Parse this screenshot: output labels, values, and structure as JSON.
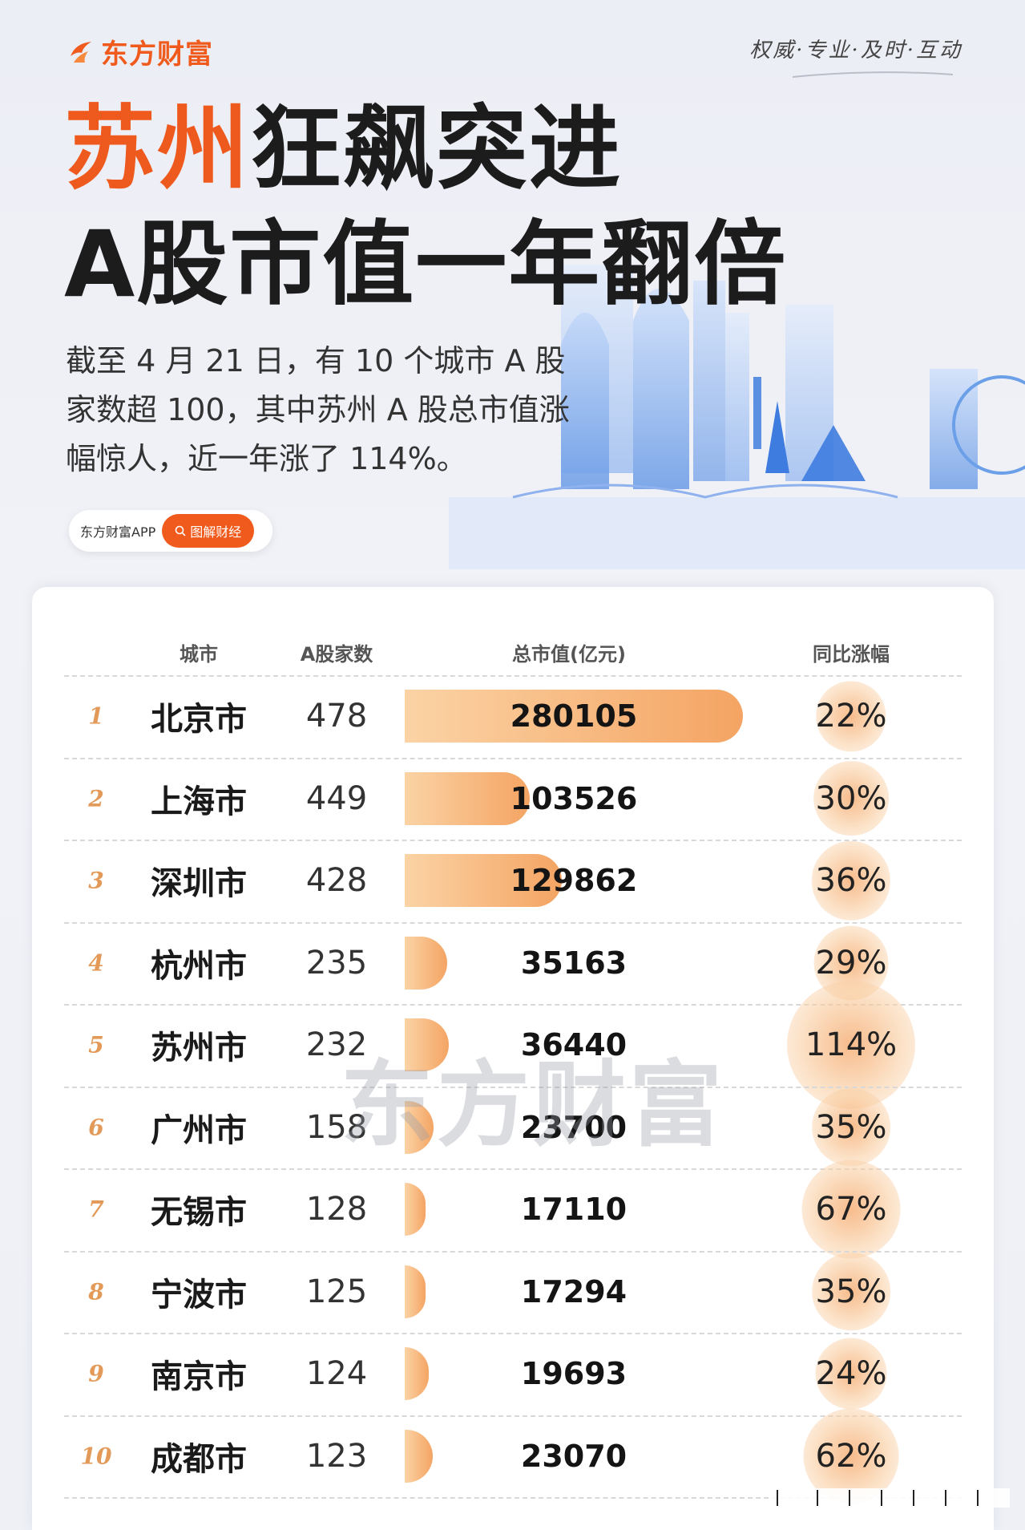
{
  "brand": {
    "name": "东方财富",
    "slogan": "权威·专业·及时·互动"
  },
  "headline": {
    "highlight": "苏州",
    "rest": "狂飙突进",
    "line2": "A股市值一年翻倍"
  },
  "subtitle": "截至 4 月 21 日，有 10 个城市 A 股家数超 100，其中苏州 A 股总市值涨幅惊人，近一年涨了 114%。",
  "app_pill": {
    "name": "东方财富APP",
    "tag": "图解财经"
  },
  "watermark": "东方财富",
  "colors": {
    "accent": "#f05a1c",
    "bar": "#f4a463",
    "bubble": "#f6b078",
    "rank": "#e39a58"
  },
  "chart_data": {
    "type": "table",
    "columns": [
      "城市",
      "A股家数",
      "总市值(亿元)",
      "同比涨幅"
    ],
    "rows": [
      {
        "rank": "1",
        "city": "北京市",
        "count": "478",
        "market_cap": 280105,
        "market_cap_label": "280105",
        "growth": 22,
        "growth_label": "22%"
      },
      {
        "rank": "2",
        "city": "上海市",
        "count": "449",
        "market_cap": 103526,
        "market_cap_label": "103526",
        "growth": 30,
        "growth_label": "30%"
      },
      {
        "rank": "3",
        "city": "深圳市",
        "count": "428",
        "market_cap": 129862,
        "market_cap_label": "129862",
        "growth": 36,
        "growth_label": "36%"
      },
      {
        "rank": "4",
        "city": "杭州市",
        "count": "235",
        "market_cap": 35163,
        "market_cap_label": "35163",
        "growth": 29,
        "growth_label": "29%"
      },
      {
        "rank": "5",
        "city": "苏州市",
        "count": "232",
        "market_cap": 36440,
        "market_cap_label": "36440",
        "growth": 114,
        "growth_label": "114%"
      },
      {
        "rank": "6",
        "city": "广州市",
        "count": "158",
        "market_cap": 23700,
        "market_cap_label": "23700",
        "growth": 35,
        "growth_label": "35%"
      },
      {
        "rank": "7",
        "city": "无锡市",
        "count": "128",
        "market_cap": 17110,
        "market_cap_label": "17110",
        "growth": 67,
        "growth_label": "67%"
      },
      {
        "rank": "8",
        "city": "宁波市",
        "count": "125",
        "market_cap": 17294,
        "market_cap_label": "17294",
        "growth": 35,
        "growth_label": "35%"
      },
      {
        "rank": "9",
        "city": "南京市",
        "count": "124",
        "market_cap": 19693,
        "market_cap_label": "19693",
        "growth": 24,
        "growth_label": "24%"
      },
      {
        "rank": "10",
        "city": "成都市",
        "count": "123",
        "market_cap": 23070,
        "market_cap_label": "23070",
        "growth": 62,
        "growth_label": "62%"
      }
    ]
  }
}
